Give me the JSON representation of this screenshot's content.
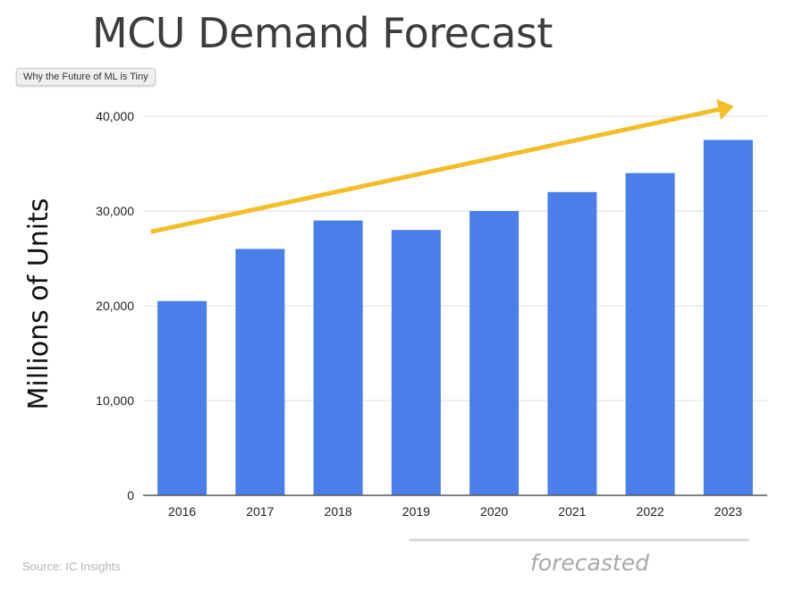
{
  "title": "MCU Demand Forecast",
  "tooltip": "Why the Future of ML is Tiny",
  "source": "Source: IC Insights",
  "forecast_label": "forecasted",
  "colors": {
    "bar": "#4a7fea",
    "arrow": "#f4be2b",
    "grid": "#dddddd",
    "axis": "#555555",
    "forecast_line": "#d8d8d8"
  },
  "chart_data": {
    "type": "bar",
    "categories": [
      "2016",
      "2017",
      "2018",
      "2019",
      "2020",
      "2021",
      "2022",
      "2023"
    ],
    "values": [
      20500,
      26000,
      29000,
      28000,
      30000,
      32000,
      34000,
      37500
    ],
    "ylabel": "Millions of Units",
    "ylim": [
      0,
      40000
    ],
    "yticks": [
      0,
      10000,
      20000,
      30000,
      40000
    ],
    "ytick_labels": [
      "0",
      "10,000",
      "20,000",
      "30,000",
      "40,000"
    ],
    "grid": true,
    "forecast_categories": [
      "2020",
      "2021",
      "2022",
      "2023"
    ],
    "trend_arrow": {
      "from": [
        "2016",
        27800
      ],
      "to": [
        "2023",
        41300
      ]
    }
  }
}
